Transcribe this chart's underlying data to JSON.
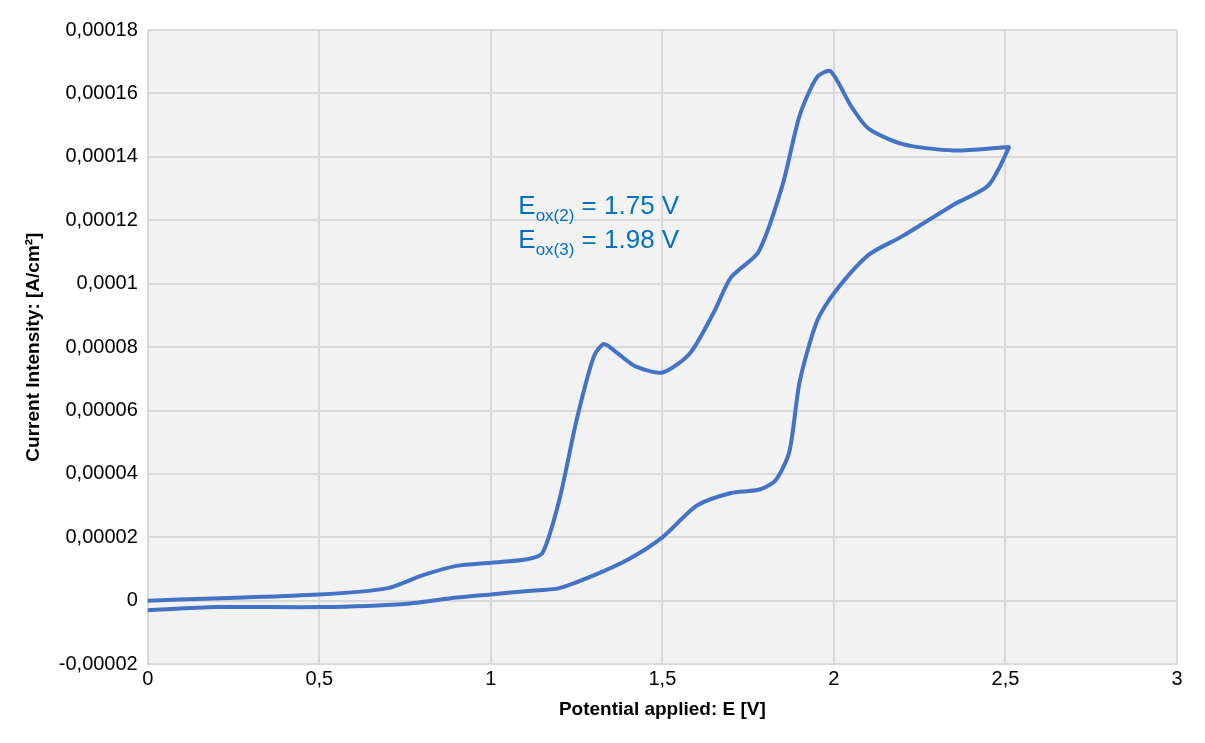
{
  "chart_data": {
    "type": "line",
    "xlabel": "Potential applied: E [V]",
    "ylabel": "Current Intensity: [A/cm²]",
    "annotations": [
      "E$_{ox(2)}$ = 1.75 V",
      "E$_{ox(3)}$ = 1.98 V"
    ],
    "series": [
      {
        "color": "#4472c4",
        "x": [
          0,
          0.5,
          0.7,
          0.8,
          0.9,
          1.0,
          1.1,
          1.15,
          1.2,
          1.25,
          1.3,
          1.33,
          1.37,
          1.42,
          1.5,
          1.58,
          1.65,
          1.7,
          1.78,
          1.85,
          1.9,
          1.95,
          1.99,
          2.05,
          2.1,
          2.2,
          2.35,
          2.5,
          2.51,
          2.45,
          2.35,
          2.2,
          2.1,
          2.0,
          1.95,
          1.9,
          1.87,
          1.83,
          1.78,
          1.7,
          1.6,
          1.5,
          1.4,
          1.3,
          1.2,
          1.1,
          1.0,
          0.9,
          0.75,
          0.5,
          0.2,
          0
        ],
        "values": [
          0,
          2e-06,
          4e-06,
          8e-06,
          1.1e-05,
          1.2e-05,
          1.3e-05,
          1.5e-05,
          3.2e-05,
          5.7e-05,
          7.7e-05,
          8.1e-05,
          7.8e-05,
          7.4e-05,
          7.2e-05,
          7.8e-05,
          9.1e-05,
          0.000102,
          0.00011,
          0.000131,
          0.000153,
          0.000165,
          0.000167,
          0.000156,
          0.000149,
          0.000144,
          0.000142,
          0.000143,
          0.000143,
          0.000131,
          0.000125,
          0.000115,
          0.000109,
          9.7e-05,
          8.8e-05,
          6.9e-05,
          4.7e-05,
          3.8e-05,
          3.5e-05,
          3.4e-05,
          3e-05,
          2e-05,
          1.3e-05,
          8e-06,
          4e-06,
          3e-06,
          2e-06,
          1e-06,
          -1e-06,
          -2e-06,
          -2e-06,
          -3e-06
        ]
      }
    ],
    "xlim": [
      0,
      3
    ],
    "xticks": [
      0,
      {
        "value": 0.5,
        "label": "0,5"
      },
      1,
      {
        "value": 1.5,
        "label": "1,5"
      },
      2,
      {
        "value": 2.5,
        "label": "2,5"
      },
      3
    ],
    "ylim": [
      -2e-05,
      0.00018
    ],
    "yticks": [
      {
        "value": -2e-05,
        "label": "-0,00002"
      },
      0,
      {
        "value": 2e-05,
        "label": "0,00002"
      },
      {
        "value": 4e-05,
        "label": "0,00004"
      },
      {
        "value": 6e-05,
        "label": "0,00006"
      },
      {
        "value": 8e-05,
        "label": "0,00008"
      },
      {
        "value": 0.0001,
        "label": "0,0001"
      },
      {
        "value": 0.00012,
        "label": "0,00012"
      },
      {
        "value": 0.00014,
        "label": "0,00014"
      },
      {
        "value": 0.00016,
        "label": "0,00016"
      },
      {
        "value": 0.00018,
        "label": "0,00018"
      }
    ],
    "grid": true,
    "legend": false,
    "marker": "none",
    "line_style": "solid"
  }
}
